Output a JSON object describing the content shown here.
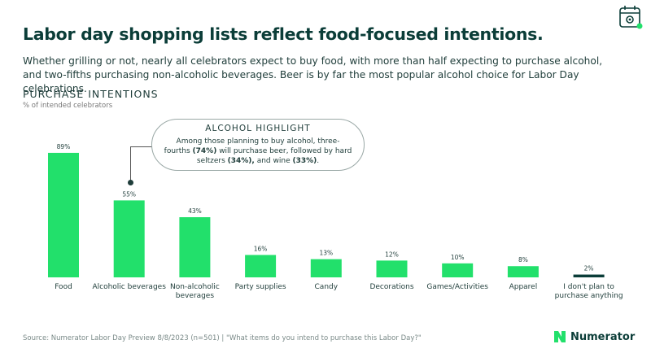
{
  "title": "Labor day shopping lists reflect food-focused intentions.",
  "subtitle": "Whether grilling or not, nearly all celebrators expect to buy food, with more than half expecting to purchase alcohol, and two-fifths purchasing non-alcoholic beverages. Beer is by far the most popular alcohol choice for Labor Day celebrations.",
  "section_title": "PURCHASE INTENTIONS",
  "units_note": "% of intended celebrators",
  "callout": {
    "heading": "ALCOHOL HIGHLIGHT",
    "text_pre": "Among those planning to buy alcohol, three-fourths ",
    "beer_pct": "(74%)",
    "text_mid1": " will purchase beer, followed by hard seltzers ",
    "seltzer_pct": "(34%),",
    "text_mid2": " and wine ",
    "wine_pct": "(33%)",
    "text_end": "."
  },
  "source": "Source: Numerator Labor Day Preview 8/8/2023 (n=501) | \"What items do you intend to purchase this Labor Day?\"",
  "brand": "Numerator",
  "icons": {
    "header_badge": "calendar-gear-icon",
    "brand_logo": "numerator-n-icon"
  },
  "colors": {
    "bar": "#22e06b",
    "bar_last": "#0b3d38",
    "title": "#0b3d38",
    "accent": "#22e06b"
  },
  "chart_data": {
    "type": "bar",
    "categories": [
      "Food",
      "Alcoholic beverages",
      "Non-alcoholic beverages",
      "Party supplies",
      "Candy",
      "Decorations",
      "Games/Activities",
      "Apparel",
      "I don't plan to purchase anything"
    ],
    "category_lines": [
      [
        "Food"
      ],
      [
        "Alcoholic beverages"
      ],
      [
        "Non-alcoholic",
        "beverages"
      ],
      [
        "Party supplies"
      ],
      [
        "Candy"
      ],
      [
        "Decorations"
      ],
      [
        "Games/Activities"
      ],
      [
        "Apparel"
      ],
      [
        "I don't plan to",
        "purchase anything"
      ]
    ],
    "values": [
      89,
      55,
      43,
      16,
      13,
      12,
      10,
      8,
      2
    ],
    "value_labels": [
      "89%",
      "55%",
      "43%",
      "16%",
      "13%",
      "12%",
      "10%",
      "8%",
      "2%"
    ],
    "ylim": [
      0,
      100
    ],
    "grid": false,
    "legend": "none"
  }
}
